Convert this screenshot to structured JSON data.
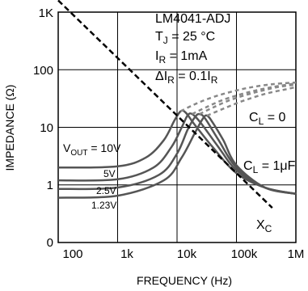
{
  "chart_data": {
    "type": "line",
    "title": "",
    "xlabel": "FREQUENCY (Hz)",
    "ylabel": "IMPEDANCE (Ω)",
    "x_scale": "log",
    "y_scale": "log",
    "xlim": [
      100,
      1000000
    ],
    "ylim": [
      0.1,
      1000
    ],
    "x_ticks": [
      "100",
      "1k",
      "10k",
      "100k",
      "1M"
    ],
    "y_ticks": [
      "1K",
      "100",
      "10",
      "1",
      "0"
    ],
    "conditions": {
      "part": "LM4041-ADJ",
      "tj": "T",
      "tj_sub": "J",
      "tj_val": " = 25 °C",
      "ir": "I",
      "ir_sub": "R",
      "ir_val": " = 1mA",
      "dir": "ΔI",
      "dir_sub": "R",
      "dir_val": " = 0.1I",
      "dir_sub2": "R"
    },
    "annotations": {
      "vout": "V",
      "vout_sub": "OUT",
      "vout_val": " = 10V",
      "v5": "5V",
      "v25": "2.5V",
      "v123": "1.23V",
      "cl0": "C",
      "cl0_sub": "L",
      "cl0_val": " = 0",
      "cl1": "C",
      "cl1_sub": "L",
      "cl1_val": " = 1μF",
      "xc": "X",
      "xc_sub": "C"
    },
    "colors": {
      "solid": "#555555",
      "dashed": "#888888",
      "xc": "#000000"
    },
    "series": [
      {
        "label": "V_OUT = 10V, C_L = 1μF",
        "style": "solid",
        "x": [
          100,
          1000,
          3000,
          6000,
          9000,
          11500,
          14000,
          20000,
          40000,
          100000,
          300000,
          1000000
        ],
        "y": [
          2.0,
          2.1,
          3.0,
          6.0,
          13,
          19,
          18,
          11,
          4.5,
          1.6,
          0.9,
          0.7
        ]
      },
      {
        "label": "V_OUT = 5V, C_L = 1μF",
        "style": "solid",
        "x": [
          100,
          1000,
          4000,
          8000,
          12000,
          15000,
          18000,
          25000,
          50000,
          100000,
          300000,
          1000000
        ],
        "y": [
          1.2,
          1.25,
          2.0,
          4.5,
          10,
          16,
          17,
          12,
          4.5,
          1.8,
          0.9,
          0.7
        ]
      },
      {
        "label": "V_OUT = 2.5V, C_L = 1μF",
        "style": "solid",
        "x": [
          100,
          1000,
          5000,
          10000,
          15000,
          20000,
          24000,
          30000,
          50000,
          100000,
          300000,
          1000000
        ],
        "y": [
          0.85,
          0.9,
          1.5,
          3.5,
          9,
          15,
          17,
          14,
          6.0,
          2.0,
          0.9,
          0.7
        ]
      },
      {
        "label": "V_OUT = 1.23V, C_L = 1μF",
        "style": "solid",
        "x": [
          100,
          1000,
          6000,
          12000,
          20000,
          27000,
          32000,
          40000,
          60000,
          100000,
          300000,
          1000000
        ],
        "y": [
          0.6,
          0.65,
          1.2,
          3.0,
          8.0,
          14,
          16,
          12,
          6.0,
          2.2,
          0.9,
          0.7
        ]
      },
      {
        "label": "V_OUT = 10V, C_L = 0",
        "style": "dashed",
        "x": [
          11500,
          18000,
          30000,
          60000,
          150000,
          400000,
          1000000
        ],
        "y": [
          19,
          24,
          30,
          38,
          48,
          56,
          60
        ]
      },
      {
        "label": "V_OUT = 5V, C_L = 0",
        "style": "dashed",
        "x": [
          18000,
          30000,
          60000,
          150000,
          400000,
          1000000
        ],
        "y": [
          17,
          22,
          30,
          40,
          50,
          58
        ]
      },
      {
        "label": "V_OUT = 2.5V, C_L = 0",
        "style": "dashed",
        "x": [
          24000,
          40000,
          80000,
          200000,
          500000,
          1000000
        ],
        "y": [
          17,
          22,
          30,
          40,
          50,
          55
        ]
      },
      {
        "label": "V_OUT = 1.23V, C_L = 0",
        "style": "dashed",
        "x": [
          32000,
          60000,
          120000,
          300000,
          700000,
          1000000
        ],
        "y": [
          16,
          21,
          28,
          38,
          46,
          50
        ]
      },
      {
        "label": "X_C",
        "style": "xc",
        "x": [
          100,
          400000
        ],
        "y": [
          1600,
          0.4
        ]
      }
    ]
  }
}
